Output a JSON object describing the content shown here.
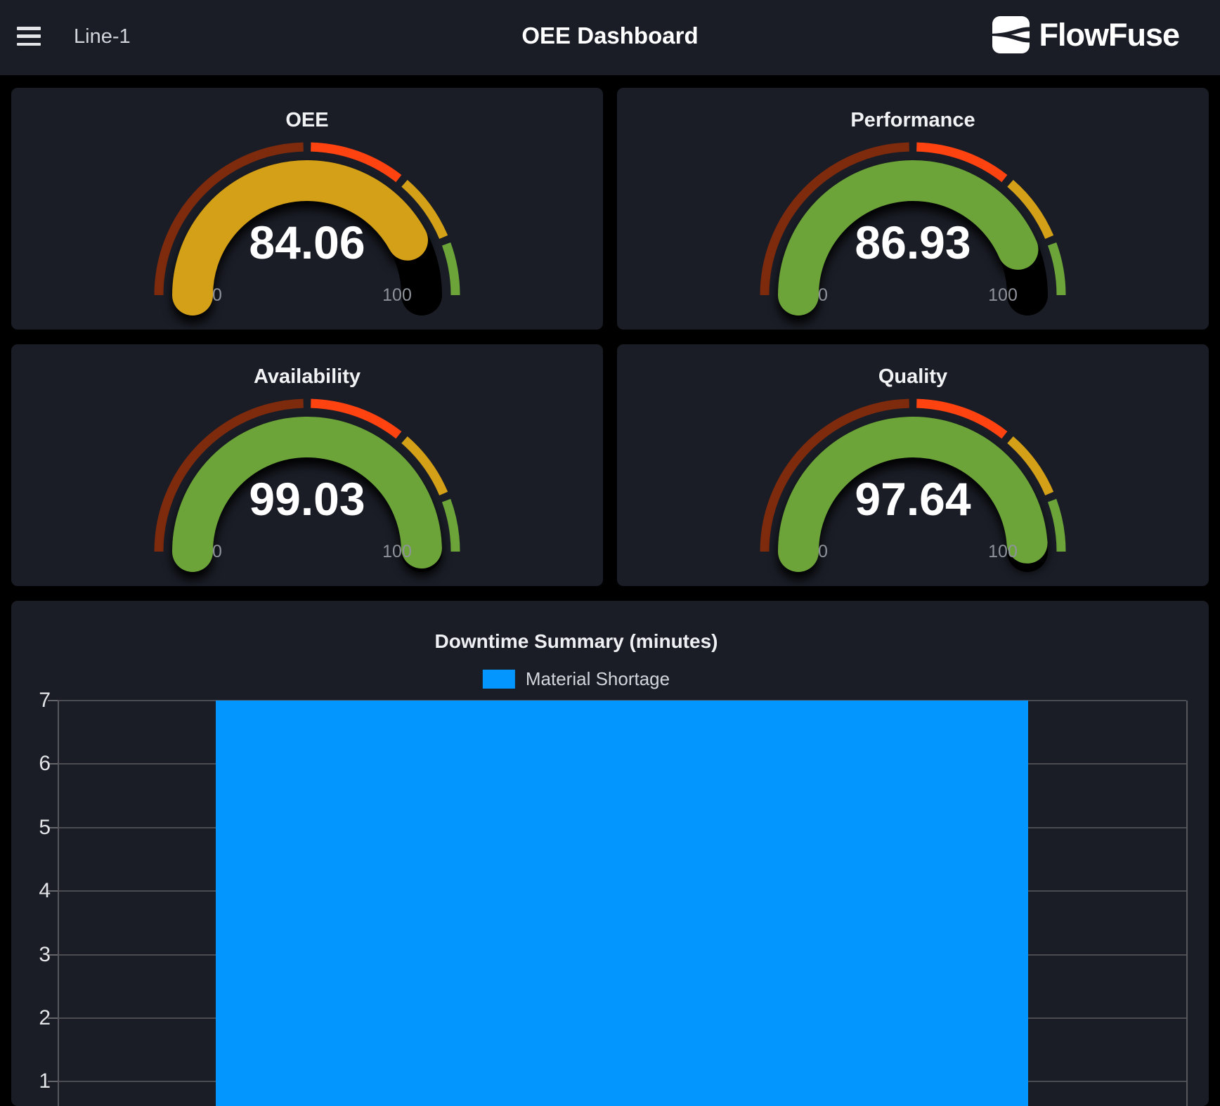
{
  "header": {
    "device_label": "Line-1",
    "title": "OEE Dashboard",
    "brand": "FlowFuse"
  },
  "colors": {
    "page_background": "#000000",
    "panel_background": "#1a1d26",
    "bar_blue": "#0496ff",
    "gauge_green": "#6ca439",
    "gauge_gold": "#d4a017",
    "gauge_red": "#ff4310",
    "gauge_maroon": "#7e2a0c"
  },
  "chart_data": [
    {
      "type": "gauge",
      "title": "OEE",
      "value": 84.06,
      "value_label": "84.06",
      "min": 0,
      "max": 100,
      "min_label": "0",
      "max_label": "100",
      "fill_color": "#d4a017",
      "track_color": "#000000",
      "segments": [
        {
          "from": 0,
          "to": 50,
          "color": "#7e2a0c"
        },
        {
          "from": 50,
          "to": 72,
          "color": "#ff4310"
        },
        {
          "from": 72,
          "to": 88,
          "color": "#d4a017"
        },
        {
          "from": 88,
          "to": 100,
          "color": "#6ca439"
        }
      ]
    },
    {
      "type": "gauge",
      "title": "Performance",
      "value": 86.93,
      "value_label": "86.93",
      "min": 0,
      "max": 100,
      "min_label": "0",
      "max_label": "100",
      "fill_color": "#6ca439",
      "track_color": "#000000",
      "segments": [
        {
          "from": 0,
          "to": 50,
          "color": "#7e2a0c"
        },
        {
          "from": 50,
          "to": 72,
          "color": "#ff4310"
        },
        {
          "from": 72,
          "to": 88,
          "color": "#d4a017"
        },
        {
          "from": 88,
          "to": 100,
          "color": "#6ca439"
        }
      ]
    },
    {
      "type": "gauge",
      "title": "Availability",
      "value": 99.03,
      "value_label": "99.03",
      "min": 0,
      "max": 100,
      "min_label": "0",
      "max_label": "100",
      "fill_color": "#6ca439",
      "track_color": "#000000",
      "segments": [
        {
          "from": 0,
          "to": 50,
          "color": "#7e2a0c"
        },
        {
          "from": 50,
          "to": 72,
          "color": "#ff4310"
        },
        {
          "from": 72,
          "to": 88,
          "color": "#d4a017"
        },
        {
          "from": 88,
          "to": 100,
          "color": "#6ca439"
        }
      ]
    },
    {
      "type": "gauge",
      "title": "Quality",
      "value": 97.64,
      "value_label": "97.64",
      "min": 0,
      "max": 100,
      "min_label": "0",
      "max_label": "100",
      "fill_color": "#6ca439",
      "track_color": "#000000",
      "segments": [
        {
          "from": 0,
          "to": 50,
          "color": "#7e2a0c"
        },
        {
          "from": 50,
          "to": 72,
          "color": "#ff4310"
        },
        {
          "from": 72,
          "to": 88,
          "color": "#d4a017"
        },
        {
          "from": 88,
          "to": 100,
          "color": "#6ca439"
        }
      ]
    },
    {
      "type": "bar",
      "title": "Downtime Summary (minutes)",
      "categories": [
        "Material Shortage"
      ],
      "series": [
        {
          "name": "Material Shortage",
          "color": "#0496ff",
          "values": [
            7
          ]
        }
      ],
      "ylim": [
        0,
        7
      ],
      "yticks": [
        7,
        6,
        5,
        4,
        3,
        2,
        1
      ],
      "grid": true,
      "legend_position": "top",
      "grid_color": "#4a4c52",
      "note": "bar plot area is cut off at the bottom edge of the screenshot"
    }
  ]
}
